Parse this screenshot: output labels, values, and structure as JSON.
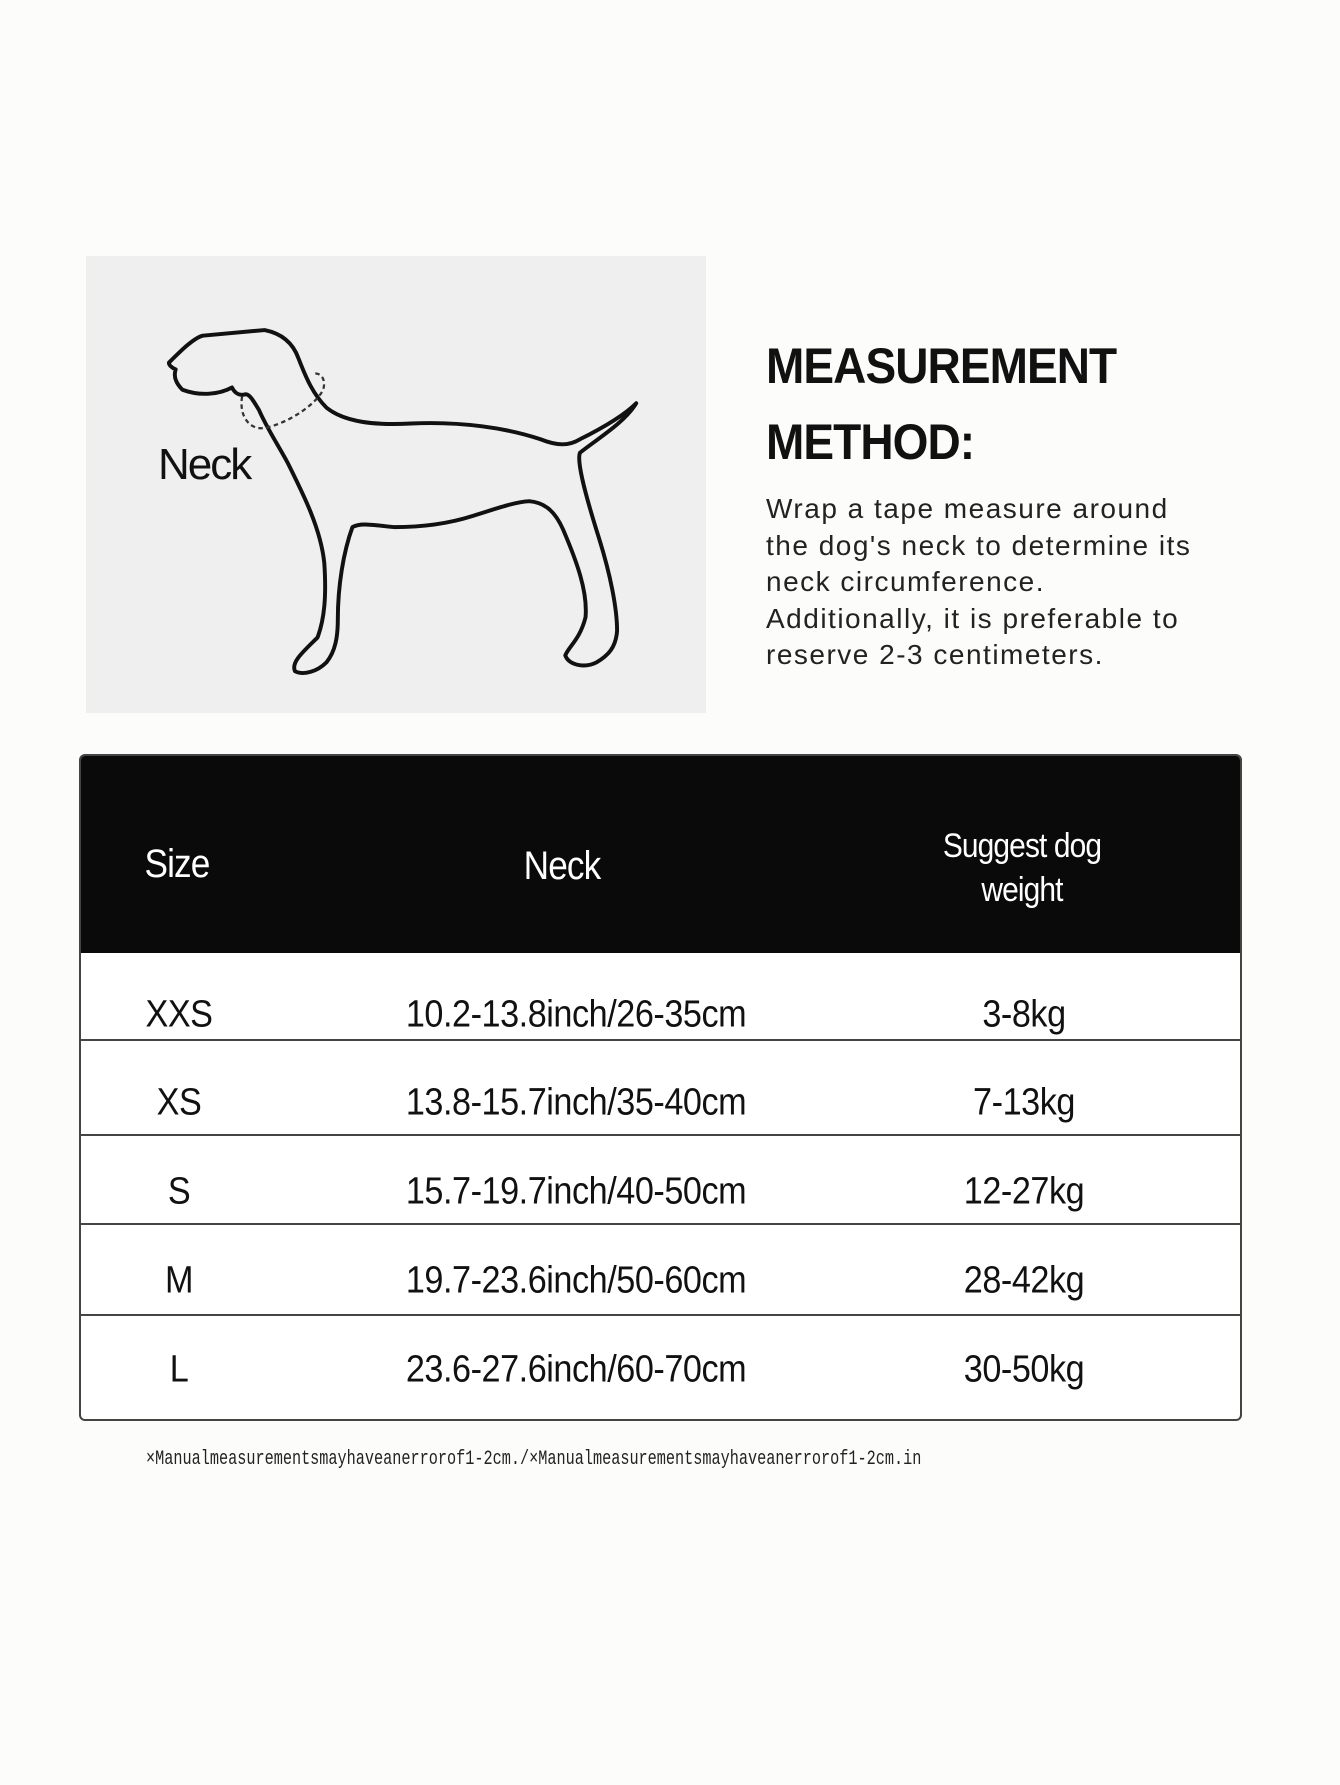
{
  "illustration": {
    "neck_label": "Neck",
    "icon": "dog-outline-icon"
  },
  "method": {
    "title_line1": "MEASUREMENT",
    "title_line2": "METHOD:",
    "lines": [
      "Wrap a tape measure around",
      "the dog's neck to determine its",
      "neck circumference.",
      "Additionally, it is preferable to",
      "reserve 2-3 centimeters."
    ]
  },
  "table": {
    "headers": {
      "size": "Size",
      "neck": "Neck",
      "weight_line1": "Suggest dog",
      "weight_line2": "weight"
    },
    "rows": [
      {
        "size": "XXS",
        "neck": "10.2-13.8inch/26-35cm",
        "weight": "3-8kg"
      },
      {
        "size": "XS",
        "neck": "13.8-15.7inch/35-40cm",
        "weight": "7-13kg"
      },
      {
        "size": "S",
        "neck": "15.7-19.7inch/40-50cm",
        "weight": "12-27kg"
      },
      {
        "size": "M",
        "neck": "19.7-23.6inch/50-60cm",
        "weight": "28-42kg"
      },
      {
        "size": "L",
        "neck": "23.6-27.6inch/60-70cm",
        "weight": "30-50kg"
      }
    ]
  },
  "footnote": "×Manualmeasurementsmayhaveanerrorof1-2cm./×Manualmeasurementsmayhaveanerrorof1-2cm.in",
  "colors": {
    "header_bg": "#0a0a0a",
    "header_text": "#ffffff",
    "photo_bg": "#efefef"
  }
}
